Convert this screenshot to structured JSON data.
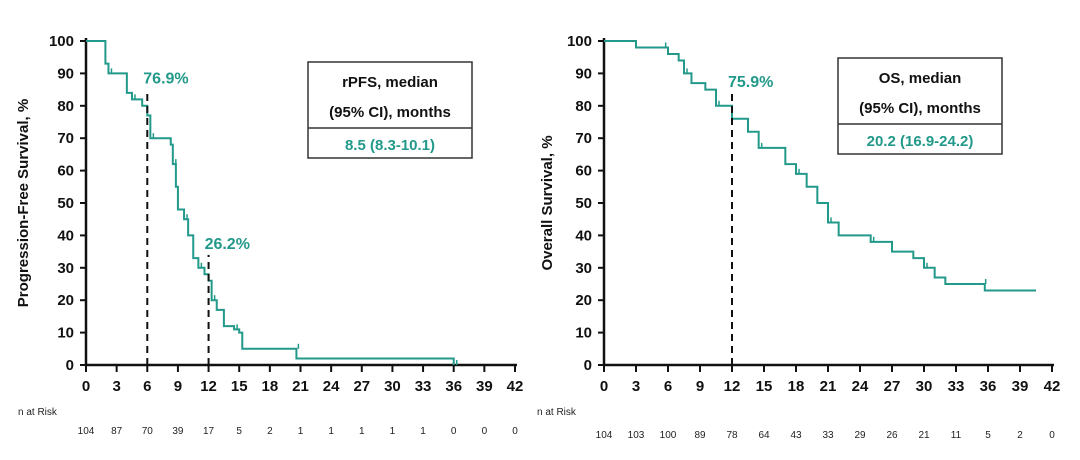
{
  "colors": {
    "curve": "#22998a",
    "axis": "#111111"
  },
  "chart_data": [
    {
      "type": "line",
      "subtype": "kaplan-meier",
      "ylabel": "Progression-Free Survival, %",
      "xlim": [
        0,
        42
      ],
      "ylim": [
        0,
        100
      ],
      "xticks": [
        0,
        3,
        6,
        9,
        12,
        15,
        18,
        21,
        24,
        27,
        30,
        33,
        36,
        39,
        42
      ],
      "yticks": [
        0,
        10,
        20,
        30,
        40,
        50,
        60,
        70,
        80,
        90,
        100
      ],
      "series": [
        {
          "name": "rPFS",
          "points": [
            [
              0,
              100
            ],
            [
              1.8,
              100
            ],
            [
              1.9,
              93
            ],
            [
              2.2,
              90
            ],
            [
              3.8,
              90
            ],
            [
              4,
              84
            ],
            [
              4.5,
              82
            ],
            [
              5.5,
              80
            ],
            [
              6,
              77
            ],
            [
              6.3,
              70
            ],
            [
              7.8,
              70
            ],
            [
              8.3,
              68
            ],
            [
              8.5,
              62
            ],
            [
              8.8,
              55
            ],
            [
              9,
              48
            ],
            [
              9.6,
              45
            ],
            [
              10,
              40
            ],
            [
              10.5,
              33
            ],
            [
              11,
              30
            ],
            [
              11.6,
              28
            ],
            [
              12,
              26
            ],
            [
              12.3,
              20
            ],
            [
              12.8,
              17
            ],
            [
              13.5,
              12
            ],
            [
              14.5,
              11
            ],
            [
              15,
              10
            ],
            [
              15.3,
              5
            ],
            [
              20.5,
              5
            ],
            [
              20.6,
              2
            ],
            [
              35.8,
              2
            ],
            [
              36,
              0
            ]
          ]
        }
      ],
      "annotations": [
        {
          "x": 6,
          "label": "76.9%"
        },
        {
          "x": 12,
          "label": "26.2%"
        }
      ],
      "legend_box": {
        "line1": "rPFS, median",
        "line2": "(95% CI), months",
        "value": "8.5 (8.3-10.1)"
      },
      "risk_label": "n at Risk",
      "risk": [
        "104",
        "87",
        "70",
        "39",
        "17",
        "5",
        "2",
        "1",
        "1",
        "1",
        "1",
        "1",
        "0",
        "0",
        "0"
      ]
    },
    {
      "type": "line",
      "subtype": "kaplan-meier",
      "ylabel": "Overall Survival, %",
      "xlim": [
        0,
        42
      ],
      "ylim": [
        0,
        100
      ],
      "xticks": [
        0,
        3,
        6,
        9,
        12,
        15,
        18,
        21,
        24,
        27,
        30,
        33,
        36,
        39,
        42
      ],
      "yticks": [
        0,
        10,
        20,
        30,
        40,
        50,
        60,
        70,
        80,
        90,
        100
      ],
      "series": [
        {
          "name": "OS",
          "points": [
            [
              0,
              100
            ],
            [
              2.8,
              100
            ],
            [
              3,
              98
            ],
            [
              5.5,
              98
            ],
            [
              6,
              96
            ],
            [
              7,
              94
            ],
            [
              7.5,
              90
            ],
            [
              8.2,
              87
            ],
            [
              9.5,
              85
            ],
            [
              10.5,
              80
            ],
            [
              12,
              76
            ],
            [
              13.5,
              72
            ],
            [
              14.5,
              67
            ],
            [
              16.3,
              67
            ],
            [
              17,
              62
            ],
            [
              18,
              59
            ],
            [
              19,
              55
            ],
            [
              20,
              50
            ],
            [
              21,
              44
            ],
            [
              22,
              40
            ],
            [
              24.5,
              40
            ],
            [
              25,
              38
            ],
            [
              27,
              35
            ],
            [
              29,
              33
            ],
            [
              30,
              30
            ],
            [
              31,
              27
            ],
            [
              32,
              25
            ],
            [
              35.5,
              25
            ],
            [
              35.7,
              23
            ],
            [
              40.5,
              23
            ]
          ]
        }
      ],
      "annotations": [
        {
          "x": 12,
          "label": "75.9%"
        }
      ],
      "legend_box": {
        "line1": "OS, median",
        "line2": "(95% CI), months",
        "value": "20.2 (16.9-24.2)"
      },
      "risk_label": "n at Risk",
      "risk": [
        "104",
        "103",
        "100",
        "89",
        "78",
        "64",
        "43",
        "33",
        "29",
        "26",
        "21",
        "11",
        "5",
        "2",
        "0"
      ]
    }
  ]
}
